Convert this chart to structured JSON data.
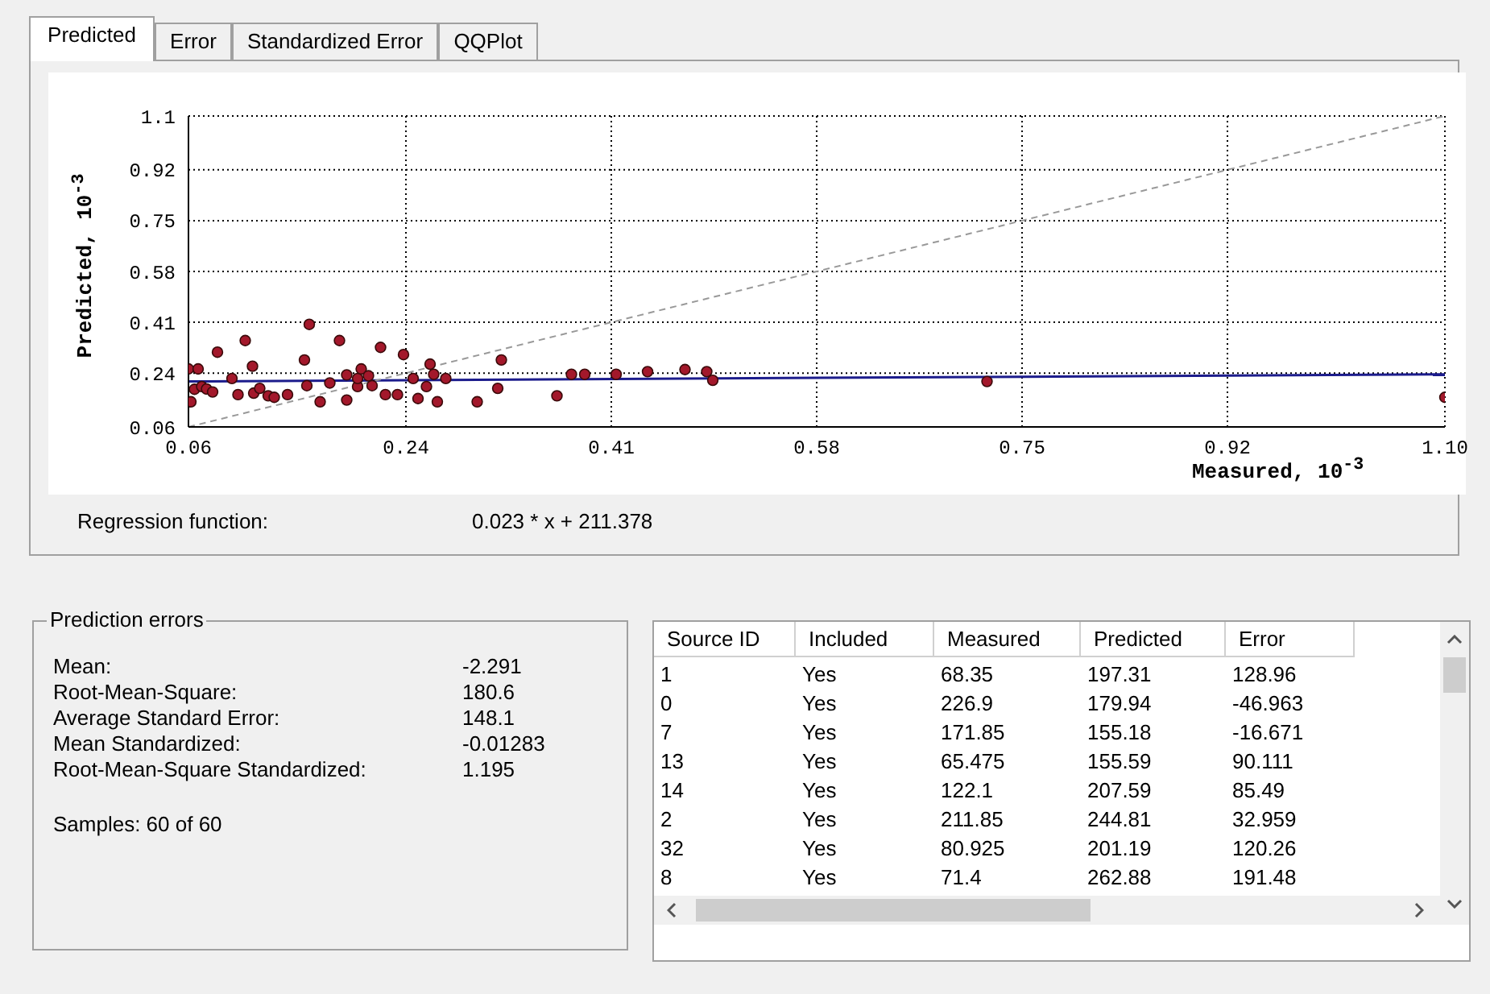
{
  "chart_data": [
    {
      "type": "scatter",
      "xlabel": "Measured, 10$^{-3}$",
      "ylabel": "Predicted, 10$^{-3}$",
      "xlim": [
        0.06,
        1.1
      ],
      "ylim": [
        0.06,
        1.1
      ],
      "xticks": [
        0.06,
        0.24,
        0.41,
        0.58,
        0.75,
        0.92,
        {
          "value": 1.1,
          "label": "1.10"
        }
      ],
      "yticks": [
        0.06,
        0.24,
        0.41,
        0.58,
        0.75,
        0.92,
        1.1
      ],
      "grid": true,
      "series": [
        {
          "type": "scatter",
          "marker": "circle",
          "color": "#a3182b",
          "x": [
            0.06,
            0.068,
            0.062,
            0.065,
            0.071,
            0.075,
            0.08,
            0.084,
            0.096,
            0.101,
            0.107,
            0.113,
            0.114,
            0.119,
            0.123,
            0.126,
            0.131,
            0.142,
            0.156,
            0.158,
            0.16,
            0.169,
            0.177,
            0.185,
            0.191,
            0.191,
            0.2,
            0.2,
            0.203,
            0.209,
            0.212,
            0.219,
            0.223,
            0.233,
            0.238,
            0.246,
            0.25,
            0.257,
            0.26,
            0.263,
            0.266,
            0.273,
            0.299,
            0.316,
            0.319,
            0.365,
            0.377,
            0.388,
            0.414,
            0.44,
            0.471,
            0.489,
            0.494,
            0.721,
            1.1
          ],
          "values": [
            0.254,
            0.254,
            0.144,
            0.186,
            0.195,
            0.187,
            0.177,
            0.31,
            0.222,
            0.168,
            0.349,
            0.263,
            0.173,
            0.189,
            null,
            0.164,
            0.159,
            0.168,
            0.284,
            0.198,
            0.403,
            0.144,
            0.207,
            0.349,
            0.234,
            0.15,
            0.195,
            0.222,
            0.254,
            0.231,
            0.198,
            0.326,
            0.168,
            0.168,
            0.302,
            0.222,
            0.155,
            0.195,
            0.27,
            0.236,
            0.144,
            0.222,
            0.144,
            0.189,
            0.284,
            0.164,
            0.236,
            0.236,
            0.236,
            0.245,
            0.252,
            0.245,
            0.216,
            0.212,
            0.159
          ]
        },
        {
          "type": "line",
          "marker": "none",
          "color": "#1c1c8c",
          "x": [
            0.06,
            1.1
          ],
          "values": [
            0.212,
            0.236
          ]
        },
        {
          "type": "line",
          "marker": "none",
          "line_style": "dashed",
          "color": "#999999",
          "x": [
            0.06,
            1.1
          ],
          "values": [
            0.06,
            1.1
          ]
        }
      ],
      "annotations": [
        "Predicted",
        "Error",
        "Standardized Error",
        "QQPlot",
        "Regression function:",
        "0.023 * x + 211.378"
      ]
    },
    {
      "type": "other",
      "title": "Prediction errors",
      "annotations": [
        "Mean:",
        "-2.291",
        "Root-Mean-Square:",
        "180.6",
        "Average Standard Error:",
        "148.1",
        "Mean Standardized:",
        "-0.01283",
        "Root-Mean-Square Standardized:",
        "1.195",
        "Samples: 60 of 60"
      ]
    },
    {
      "type": "other",
      "categories": [
        "Source ID",
        "Included",
        "Measured",
        "Predicted",
        "Error"
      ],
      "annotations": [
        "1",
        "Yes",
        "68.35",
        "197.31",
        "128.96",
        "0",
        "Yes",
        "226.9",
        "179.94",
        "-46.963",
        "7",
        "Yes",
        "171.85",
        "155.18",
        "-16.671",
        "13",
        "Yes",
        "65.475",
        "155.59",
        "90.111",
        "14",
        "Yes",
        "122.1",
        "207.59",
        "85.49",
        "2",
        "Yes",
        "211.85",
        "244.81",
        "32.959",
        "32",
        "Yes",
        "80.925",
        "201.19",
        "120.26",
        "8",
        "Yes",
        "71.4",
        "262.88",
        "191.48"
      ]
    }
  ]
}
